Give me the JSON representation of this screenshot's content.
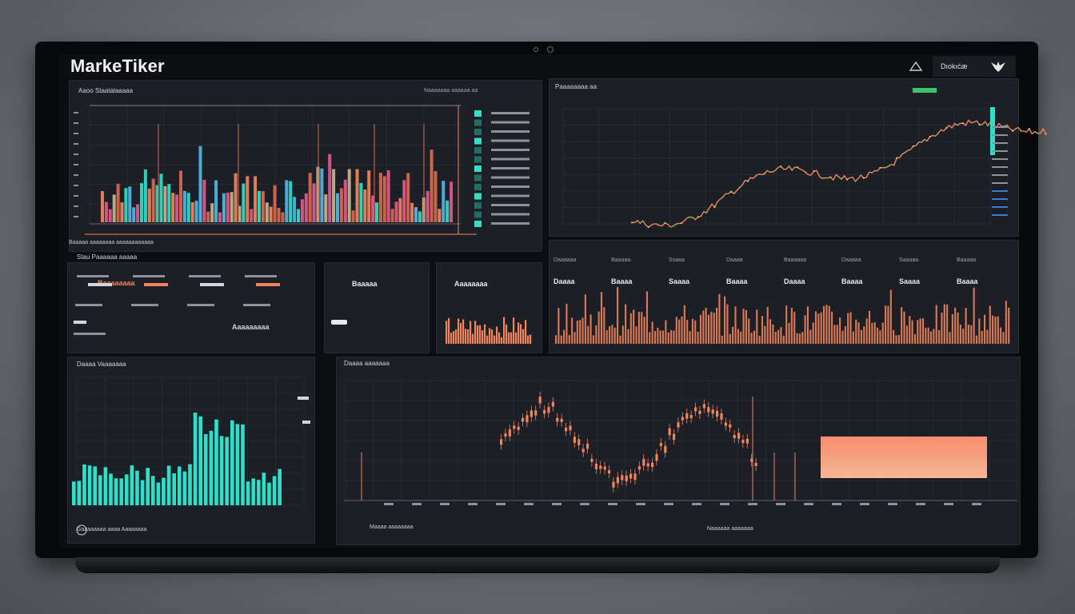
{
  "app": {
    "brand": "MarkeTiker",
    "header_right": "Dıokıćæ"
  },
  "colors": {
    "bg": "#1c1f26",
    "accent_orange": "#f2845c",
    "accent_teal": "#2ee0c8",
    "accent_green": "#3cc46a",
    "accent_blue": "#3a7bd5",
    "accent_pink": "#e25a8c"
  },
  "icons": {
    "triangle": "triangle-icon",
    "logo": "fox-logo-icon"
  },
  "panels": {
    "top_left": {
      "title": "Aaoo Staatalaaaaa",
      "subtitle": "Naaaaaaa aaaaaa aa",
      "footer": "Baaaaa aaaaaaaa aaaaaaaaaaaa"
    },
    "top_right": {
      "title": "Paaaaaaaa aa"
    },
    "mid_left": {
      "title": "Stau Paaaaaa aaaaa",
      "value_a": "Baaaaaaaa",
      "value_b": "Aaaaaaaaa"
    },
    "mid_small_a": {
      "value": "Baaaaa"
    },
    "mid_small_b": {
      "value": "Aaaaaaaa"
    },
    "mid_right": {
      "labels": [
        "Daaaaaa",
        "Baaaaa",
        "Ssaaa",
        "Daaaa",
        "Baaaaaa",
        "Daaaaa",
        "Saaaaa",
        "Baaaaa"
      ],
      "values": [
        "Daaaa",
        "Baaaa",
        "Saaaa",
        "Baaaa",
        "Daaaa",
        "Baaaa",
        "Saaaa",
        "Baaaa"
      ]
    },
    "bottom_left": {
      "title": "Daaaa Vaaaaaaa",
      "footer": "Gaaaaaaaa aaaa Aaaaaaaa"
    },
    "bottom_center": {
      "title": "Daaaa aaaaaaa",
      "footer_a": "Maaaa aaaaaaaa",
      "footer_b": "Naaaaaa aaaaaaa"
    }
  }
}
